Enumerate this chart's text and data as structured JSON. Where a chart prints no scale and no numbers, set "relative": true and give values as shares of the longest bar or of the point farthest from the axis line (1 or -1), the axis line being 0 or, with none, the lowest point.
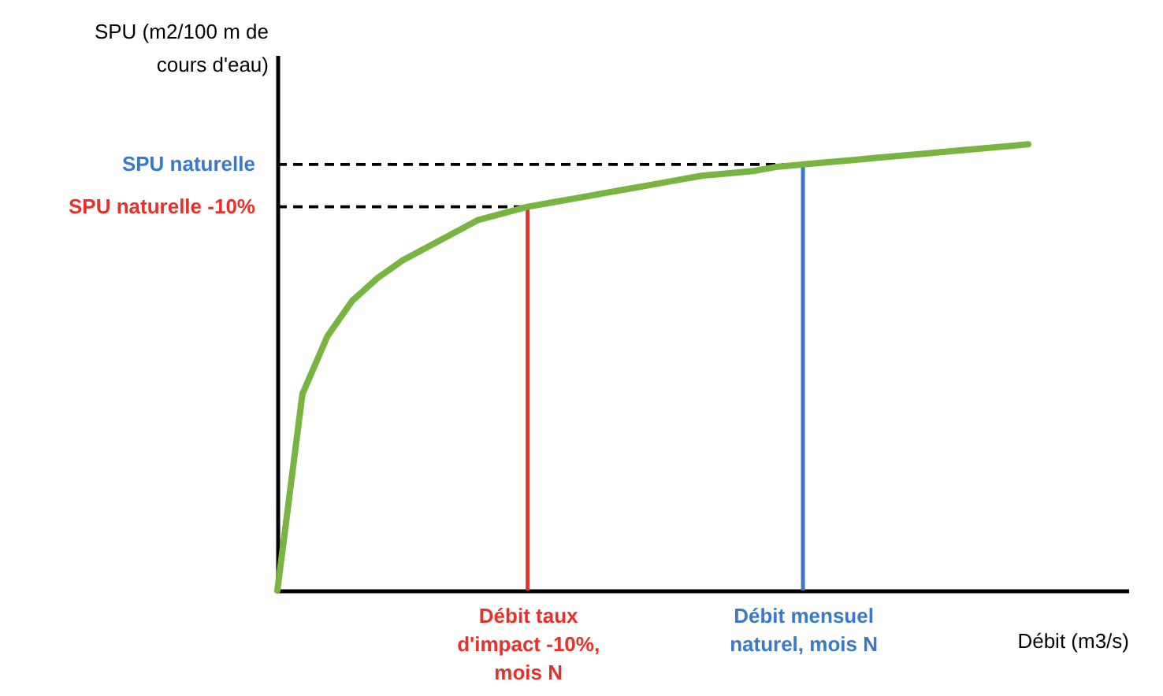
{
  "chart_data": {
    "type": "line",
    "relative": true,
    "ylabel": "SPU (m2/100 m de cours d'eau)",
    "xlabel": "Débit (m3/s)",
    "categories": [
      null,
      null,
      null,
      null,
      null,
      null,
      null,
      null,
      null,
      null,
      "Débit taux d'impact -10%, mois N",
      null,
      null,
      null,
      null,
      null,
      null,
      null,
      null,
      null,
      null,
      "Débit mensuel naturel, mois N",
      null,
      null,
      null,
      null,
      null,
      null,
      null,
      null,
      null
    ],
    "series": [
      {
        "color": "#77b441",
        "values": [
          0,
          0.44,
          0.57,
          0.65,
          0.7,
          0.74,
          0.77,
          0.8,
          0.83,
          0.845,
          0.86,
          0.87,
          0.88,
          0.89,
          0.9,
          0.91,
          0.92,
          0.93,
          0.935,
          0.94,
          0.95,
          0.955,
          0.96,
          0.965,
          0.97,
          0.975,
          0.98,
          0.985,
          0.99,
          0.995,
          1.0
        ]
      }
    ],
    "ref_lines": [
      {
        "axis": "x",
        "value": "Débit taux d'impact -10%, mois N",
        "color": "#e8302a"
      },
      {
        "axis": "x",
        "value": "Débit mensuel naturel, mois N",
        "color": "#3a78c9"
      },
      {
        "axis": "y",
        "value": 0.86,
        "label": "SPU naturelle -10%",
        "color": "#000000",
        "line_style": "dashed"
      },
      {
        "axis": "y",
        "value": 0.955,
        "label": "SPU naturelle",
        "color": "#000000",
        "line_style": "dashed"
      }
    ],
    "grid": false,
    "marker": "none",
    "line_style": "solid"
  }
}
